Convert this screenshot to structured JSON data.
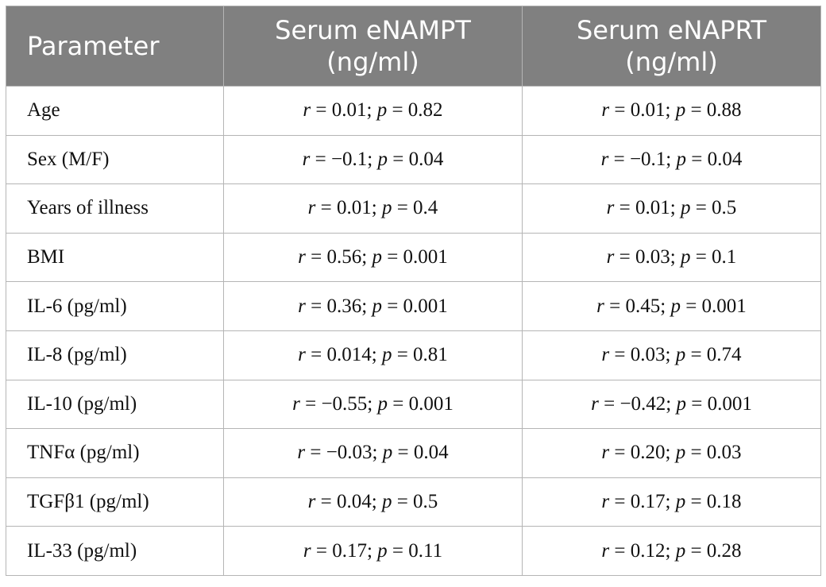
{
  "table": {
    "header": [
      "Parameter",
      "Serum eNAMPT (ng/ml)",
      "Serum eNAPRT (ng/ml)"
    ],
    "rows": [
      [
        "Age",
        "r = 0.01; p = 0.82",
        "r = 0.01; p = 0.88"
      ],
      [
        "Sex (M/F)",
        "r = −0.1; p = 0.04",
        "r = −0.1; p = 0.04"
      ],
      [
        "Years of illness",
        "r = 0.01; p = 0.4",
        "r = 0.01; p = 0.5"
      ],
      [
        "BMI",
        "r = 0.56; p = 0.001",
        "r = 0.03; p = 0.1"
      ],
      [
        "IL-6 (pg/ml)",
        "r = 0.36; p = 0.001",
        "r = 0.45; p = 0.001"
      ],
      [
        "IL-8 (pg/ml)",
        "r = 0.014; p = 0.81",
        "r = 0.03; p = 0.74"
      ],
      [
        "IL-10 (pg/ml)",
        "r = −0.55; p = 0.001",
        "r = −0.42; p = 0.001"
      ],
      [
        "TNFα (pg/ml)",
        "r = −0.03; p = 0.04",
        "r = 0.20; p = 0.03"
      ],
      [
        "TGFβ1 (pg/ml)",
        "r = 0.04; p = 0.5",
        "r = 0.17; p = 0.18"
      ],
      [
        "IL-33 (pg/ml)",
        "r = 0.17; p = 0.11",
        "r = 0.12; p = 0.28"
      ]
    ]
  }
}
